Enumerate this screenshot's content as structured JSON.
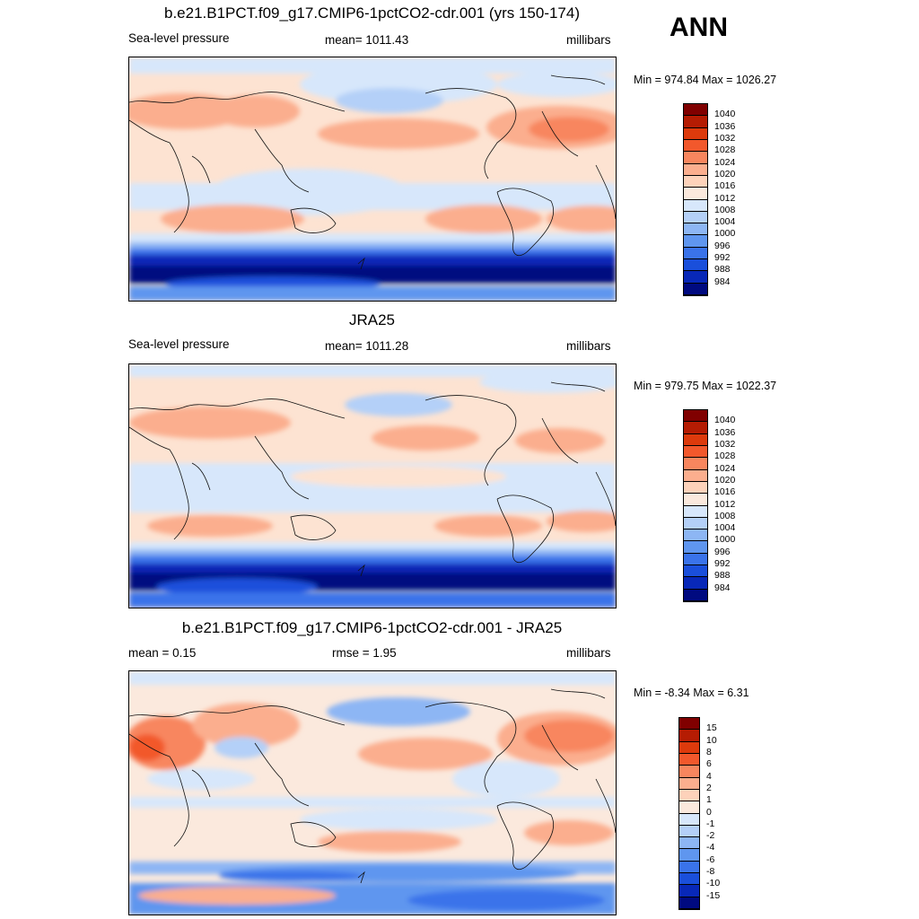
{
  "season": "ANN",
  "panels": [
    {
      "title": "b.e21.B1PCT.f09_g17.CMIP6-1pctCO2-cdr.001 (yrs 150-174)",
      "left_label": "Sea-level pressure",
      "center_label": "mean= 1011.43",
      "right_label": "millibars",
      "minmax": "Min = 974.84 Max = 1026.27",
      "colorbar": {
        "labels": [
          "1040",
          "1036",
          "1032",
          "1028",
          "1024",
          "1020",
          "1016",
          "1012",
          "1008",
          "1004",
          "1000",
          "996",
          "992",
          "988",
          "984"
        ],
        "colors": [
          "#800000",
          "#b51c03",
          "#dd3a0c",
          "#f2582c",
          "#f8865e",
          "#fbae8e",
          "#fdd2ba",
          "#fbe9dd",
          "#d7e7fb",
          "#b4d0f8",
          "#8db6f4",
          "#5f96ef",
          "#3a73ea",
          "#1a4fdb",
          "#0828b8",
          "#000a80"
        ]
      }
    },
    {
      "title": "JRA25",
      "left_label": "Sea-level pressure",
      "center_label": "mean= 1011.28",
      "right_label": "millibars",
      "minmax": "Min = 979.75 Max = 1022.37",
      "colorbar": {
        "labels": [
          "1040",
          "1036",
          "1032",
          "1028",
          "1024",
          "1020",
          "1016",
          "1012",
          "1008",
          "1004",
          "1000",
          "996",
          "992",
          "988",
          "984"
        ],
        "colors": [
          "#800000",
          "#b51c03",
          "#dd3a0c",
          "#f2582c",
          "#f8865e",
          "#fbae8e",
          "#fdd2ba",
          "#fbe9dd",
          "#d7e7fb",
          "#b4d0f8",
          "#8db6f4",
          "#5f96ef",
          "#3a73ea",
          "#1a4fdb",
          "#0828b8",
          "#000a80"
        ]
      }
    },
    {
      "title": "b.e21.B1PCT.f09_g17.CMIP6-1pctCO2-cdr.001 - JRA25",
      "left_label": "mean =   0.15",
      "center_label": "rmse =   1.95",
      "right_label": "millibars",
      "minmax": "Min =  -8.34 Max =   6.31",
      "colorbar": {
        "labels": [
          "15",
          "10",
          "8",
          "6",
          "4",
          "2",
          "1",
          "0",
          "-1",
          "-2",
          "-4",
          "-6",
          "-8",
          "-10",
          "-15"
        ],
        "colors": [
          "#800000",
          "#b51c03",
          "#dd3a0c",
          "#f2582c",
          "#f8865e",
          "#fbae8e",
          "#fdd2ba",
          "#fbe9dd",
          "#d7e7fb",
          "#b4d0f8",
          "#8db6f4",
          "#5f96ef",
          "#3a73ea",
          "#1a4fdb",
          "#0828b8",
          "#000a80"
        ]
      }
    }
  ]
}
